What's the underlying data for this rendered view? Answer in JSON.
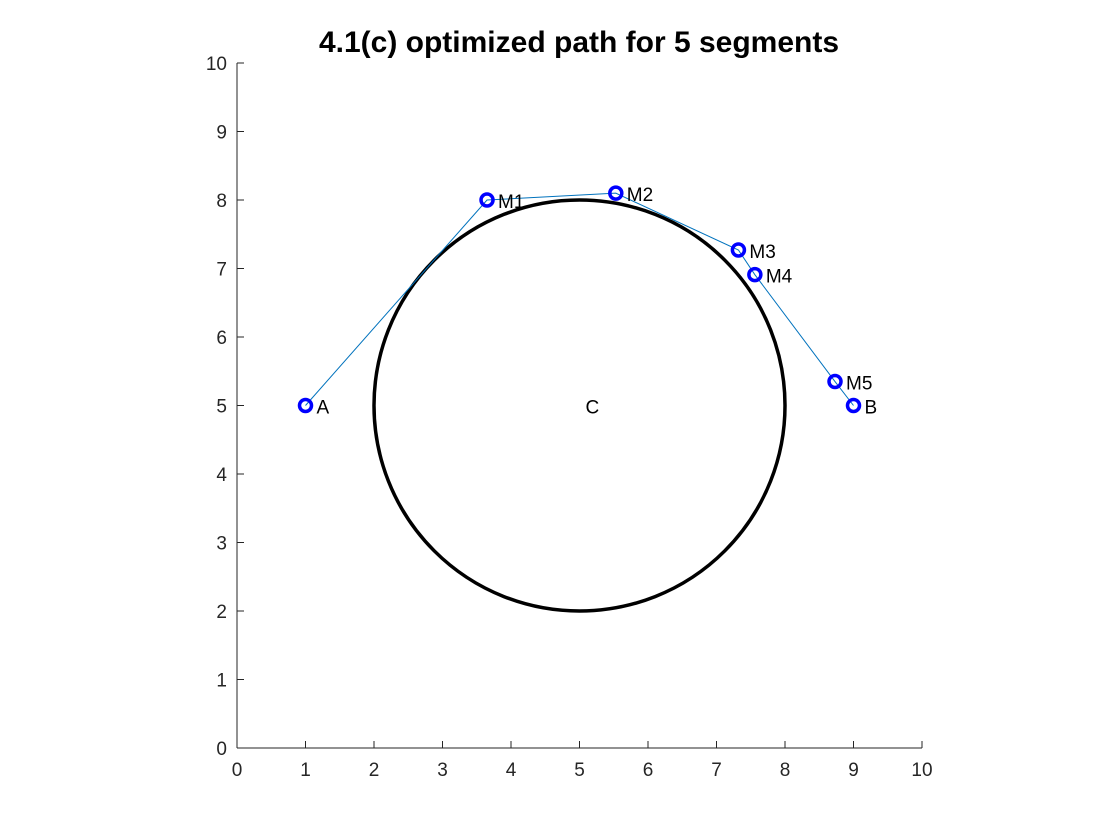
{
  "chart_data": {
    "type": "scatter",
    "title": "4.1(c) optimized path for 5 segments",
    "xlabel": "",
    "ylabel": "",
    "xlim": [
      0,
      10
    ],
    "ylim": [
      0,
      10
    ],
    "xticks": [
      "0",
      "1",
      "2",
      "3",
      "4",
      "5",
      "6",
      "7",
      "8",
      "9",
      "10"
    ],
    "yticks": [
      "0",
      "1",
      "2",
      "3",
      "4",
      "5",
      "6",
      "7",
      "8",
      "9",
      "10"
    ],
    "grid": false,
    "legend": "none",
    "path": {
      "color": "#0072BD",
      "points": [
        {
          "label": "A",
          "x": 1.0,
          "y": 5.0
        },
        {
          "label": "M1",
          "x": 3.65,
          "y": 8.0
        },
        {
          "label": "M2",
          "x": 5.53,
          "y": 8.1
        },
        {
          "label": "M3",
          "x": 7.32,
          "y": 7.27
        },
        {
          "label": "M4",
          "x": 7.56,
          "y": 6.91
        },
        {
          "label": "M5",
          "x": 8.73,
          "y": 5.35
        },
        {
          "label": "B",
          "x": 9.0,
          "y": 5.0
        }
      ]
    },
    "marker_color": "#0000FF",
    "circle": {
      "center_label": "C",
      "cx": 5,
      "cy": 5,
      "r": 3,
      "color": "#000000"
    }
  }
}
